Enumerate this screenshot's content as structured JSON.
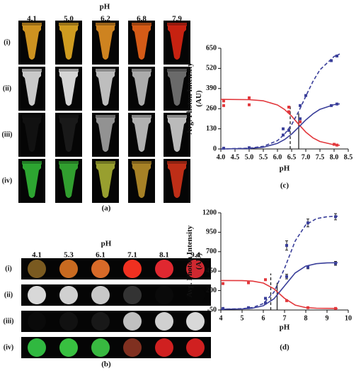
{
  "panel_a": {
    "title": "pH",
    "columns": [
      "4.1",
      "5.0",
      "6.2",
      "6.8",
      "7.9"
    ],
    "rows": [
      "(i)",
      "(ii)",
      "(iii)",
      "(iv)"
    ],
    "caption": "(a)"
  },
  "panel_b": {
    "title": "pH",
    "columns": [
      "4.1",
      "5.3",
      "6.1",
      "7.1",
      "8.1",
      "9.4"
    ],
    "rows": [
      "(i)",
      "(ii)",
      "(iii)",
      "(iv)"
    ],
    "caption": "(b)"
  },
  "chart_data": [
    {
      "type": "scatter",
      "caption": "(c)",
      "xlabel": "pH",
      "ylabel": [
        "Avg. Photon Intensity",
        "(AU)"
      ],
      "xlim": [
        4,
        8.5
      ],
      "xticks": [
        {
          "value": 4,
          "label": "4.0"
        },
        4.5,
        {
          "value": 5,
          "label": "5.0"
        },
        5.5,
        {
          "value": 6,
          "label": "6.0"
        },
        6.5,
        {
          "value": 7,
          "label": "7.0"
        },
        7.5,
        {
          "value": 8,
          "label": "8.0"
        },
        8.5
      ],
      "ylim": [
        0,
        650
      ],
      "yticks": [
        0,
        130,
        260,
        390,
        520,
        650
      ],
      "series": [
        {
          "color": "#e2383c",
          "marker": "square",
          "x": [
            4.1,
            4.1,
            5.0,
            5.0,
            6.4,
            6.4,
            6.8,
            8.0,
            8.1
          ],
          "values": [
            310,
            280,
            330,
            285,
            270,
            240,
            175,
            30,
            25
          ]
        },
        {
          "color": "#3a3f9a",
          "marker": "square",
          "x": [
            4.1,
            5.0,
            6.2,
            6.4,
            6.8,
            7.9,
            8.1
          ],
          "values": [
            5,
            8,
            90,
            120,
            195,
            280,
            290
          ]
        },
        {
          "color": "#3a3f9a",
          "marker": "square",
          "x": [
            6.2,
            6.8,
            7.0,
            7.9,
            8.1
          ],
          "values": [
            130,
            280,
            345,
            570,
            600
          ]
        },
        {
          "color": "#e2383c",
          "line": "solid",
          "x": [
            4.0,
            5.0,
            5.5,
            6.0,
            6.25,
            6.5,
            6.75,
            7.0,
            7.25,
            7.5,
            8.0,
            8.2
          ],
          "values": [
            320,
            318,
            311,
            284,
            255,
            212,
            159,
            109,
            72,
            48,
            27,
            24
          ]
        },
        {
          "color": "#3a3f9a",
          "line": "solid",
          "x": [
            4.0,
            5.0,
            5.5,
            6.0,
            6.25,
            6.5,
            6.75,
            7.0,
            7.25,
            7.5,
            8.0,
            8.2
          ],
          "values": [
            0,
            3,
            11,
            36,
            61,
            96,
            141,
            187,
            226,
            256,
            286,
            291
          ]
        },
        {
          "color": "#3a3f9a",
          "line": "dashed",
          "x": [
            4.0,
            5.0,
            5.5,
            6.0,
            6.25,
            6.5,
            6.75,
            7.0,
            7.25,
            7.5,
            8.0,
            8.2
          ],
          "values": [
            0,
            5,
            17,
            54,
            95,
            157,
            242,
            340,
            435,
            511,
            597,
            613
          ]
        }
      ],
      "reference_lines": [
        {
          "x": 6.45,
          "top": 280,
          "line": "dashed"
        },
        {
          "x": 6.75,
          "top": 230,
          "line": "solid"
        }
      ]
    },
    {
      "type": "scatter",
      "caption": "(d)",
      "xlabel": "pH",
      "ylabel": [
        "Avg. Photon Intensity",
        "(AU)"
      ],
      "xlim": [
        4,
        10
      ],
      "xticks": [
        4,
        5,
        6,
        7,
        8,
        9,
        10
      ],
      "ylim": [
        -50,
        1200
      ],
      "yticks": [
        -50,
        200,
        450,
        700,
        950,
        1200
      ],
      "series": [
        {
          "color": "#e2383c",
          "marker": "square",
          "x": [
            4.1,
            5.3,
            6.1,
            7.1,
            8.1,
            9.4
          ],
          "values": [
            290,
            300,
            340,
            70,
            -20,
            -30
          ]
        },
        {
          "color": "#3a3f9a",
          "marker": "square",
          "x": [
            4.1,
            5.3,
            6.1,
            7.1,
            8.1,
            9.4
          ],
          "values": [
            -30,
            -20,
            40,
            380,
            500,
            550
          ],
          "errors": [
            null,
            null,
            null,
            30,
            20,
            25
          ]
        },
        {
          "color": "#3a3f9a",
          "marker": "square",
          "x": [
            6.1,
            7.1,
            8.1,
            9.4
          ],
          "values": [
            100,
            780,
            1070,
            1150
          ],
          "errors": [
            null,
            60,
            50,
            40
          ]
        },
        {
          "color": "#e2383c",
          "line": "solid",
          "x": [
            4,
            5,
            5.5,
            6,
            6.5,
            7,
            7.5,
            8,
            8.5,
            9,
            9.5
          ],
          "values": [
            330,
            328,
            321,
            297,
            223,
            100,
            13,
            -19,
            -27,
            -29,
            -30
          ]
        },
        {
          "color": "#3a3f9a",
          "line": "solid",
          "x": [
            4,
            5,
            5.5,
            6,
            6.5,
            7,
            7.5,
            8,
            8.5,
            9,
            9.5
          ],
          "values": [
            -40,
            -36,
            -26,
            5,
            94,
            260,
            426,
            515,
            546,
            556,
            559
          ]
        },
        {
          "color": "#3a3f9a",
          "line": "dashed",
          "x": [
            4,
            5,
            5.5,
            6,
            6.5,
            7,
            7.5,
            8,
            8.5,
            9,
            9.5
          ],
          "values": [
            -40,
            -34,
            -18,
            32,
            179,
            486,
            837,
            1046,
            1125,
            1150,
            1156
          ]
        }
      ],
      "reference_lines": [
        {
          "x": 6.35,
          "top": 420,
          "line": "dashed"
        },
        {
          "x": 6.65,
          "top": 300,
          "line": "solid"
        }
      ]
    }
  ]
}
